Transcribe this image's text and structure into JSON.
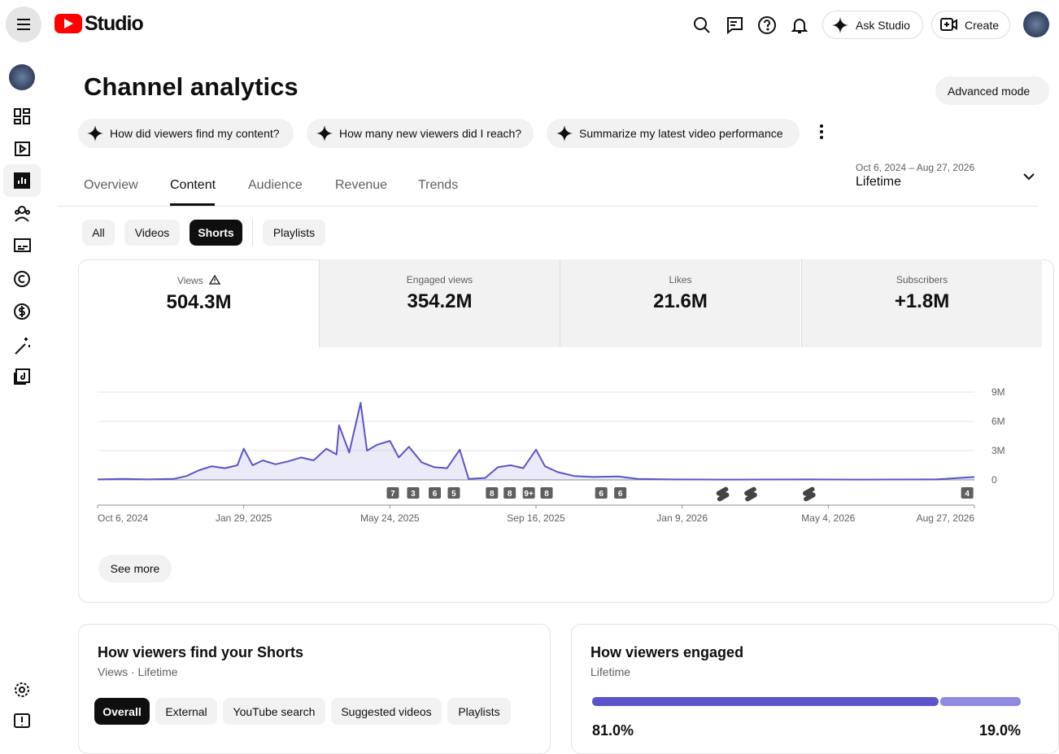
{
  "header": {
    "logo": "Studio",
    "ask": "Ask Studio",
    "create": "Create"
  },
  "title": "Channel analytics",
  "advanced": "Advanced mode",
  "suggestions": [
    "How did viewers find my content?",
    "How many new viewers did I reach?",
    "Summarize my latest video performance"
  ],
  "tabs": [
    "Overview",
    "Content",
    "Audience",
    "Revenue",
    "Trends"
  ],
  "date_range": {
    "range": "Oct 6, 2024 – Aug 27, 2026",
    "period": "Lifetime"
  },
  "filters": [
    "All",
    "Videos",
    "Shorts",
    "Playlists"
  ],
  "metrics": [
    {
      "label": "Views",
      "value": "504.3M"
    },
    {
      "label": "Engaged views",
      "value": "354.2M"
    },
    {
      "label": "Likes",
      "value": "21.6M"
    },
    {
      "label": "Subscribers",
      "value": "+1.8M"
    }
  ],
  "chart_data": {
    "type": "line",
    "color": "#5b54c9",
    "grid": true,
    "x": [
      "2024-10-06",
      "2024-10-26",
      "2024-11-15",
      "2024-12-05",
      "2024-12-15",
      "2024-12-25",
      "2025-01-04",
      "2025-01-14",
      "2025-01-24",
      "2025-01-29",
      "2025-02-05",
      "2025-02-13",
      "2025-02-23",
      "2025-03-05",
      "2025-03-15",
      "2025-03-25",
      "2025-04-04",
      "2025-04-12",
      "2025-04-14",
      "2025-04-22",
      "2025-05-01",
      "2025-05-06",
      "2025-05-14",
      "2025-05-24",
      "2025-05-31",
      "2025-06-08",
      "2025-06-18",
      "2025-06-28",
      "2025-07-08",
      "2025-07-18",
      "2025-07-25",
      "2025-08-07",
      "2025-08-17",
      "2025-08-27",
      "2025-09-06",
      "2025-09-16",
      "2025-09-23",
      "2025-10-03",
      "2025-10-16",
      "2025-10-31",
      "2025-11-20",
      "2025-12-05",
      "2025-12-30",
      "2026-02-18",
      "2026-04-19",
      "2026-05-29",
      "2026-07-28",
      "2026-08-27"
    ],
    "values": [
      50000,
      100000,
      50000,
      100000,
      400000,
      1000000,
      1400000,
      1200000,
      1500000,
      3200000,
      1500000,
      2000000,
      1600000,
      1900000,
      2300000,
      2000000,
      3200000,
      2600000,
      5600000,
      2800000,
      7900000,
      3000000,
      3600000,
      4000000,
      2300000,
      3400000,
      1800000,
      1300000,
      1200000,
      3100000,
      100000,
      200000,
      1300000,
      1500000,
      1200000,
      3100000,
      1400000,
      800000,
      400000,
      300000,
      350000,
      100000,
      50000,
      30000,
      50000,
      30000,
      50000,
      300000
    ],
    "xlim": [
      "2024-10-06",
      "2026-08-27"
    ],
    "xticks": [
      {
        "value": "2024-10-06",
        "label": "Oct 6, 2024"
      },
      {
        "value": "2025-01-29",
        "label": "Jan 29, 2025"
      },
      {
        "value": "2025-05-24",
        "label": "May 24, 2025"
      },
      {
        "value": "2025-09-16",
        "label": "Sep 16, 2025"
      },
      {
        "value": "2026-01-09",
        "label": "Jan 9, 2026"
      },
      {
        "value": "2026-05-04",
        "label": "May 4, 2026"
      },
      {
        "value": "2026-08-27",
        "label": "Aug 27, 2026"
      }
    ],
    "ylim": [
      0,
      9000000
    ],
    "yticks": [
      0,
      {
        "value": 3000000,
        "label": "3M"
      },
      {
        "value": 6000000,
        "label": "6M"
      },
      {
        "value": 9000000,
        "label": "9M"
      }
    ],
    "uploads": {
      "x": [
        "2025-05-26",
        "2025-06-11",
        "2025-06-28",
        "2025-07-13",
        "2025-08-12",
        "2025-08-26",
        "2025-09-10",
        "2025-09-24",
        "2025-11-06",
        "2025-11-21",
        "2026-02-09",
        "2026-03-03",
        "2026-04-18",
        "2026-08-21"
      ],
      "labels": [
        "7",
        "3",
        "6",
        "5",
        "8",
        "8",
        "9+",
        "8",
        "6",
        "6",
        null,
        null,
        null,
        "4"
      ]
    }
  },
  "see_more": "See more",
  "find_card": {
    "title": "How viewers find your Shorts",
    "subtitle": "Views · Lifetime",
    "chips": [
      "Overall",
      "External",
      "YouTube search",
      "Suggested videos",
      "Playlists"
    ]
  },
  "engaged_card": {
    "title": "How viewers engaged",
    "subtitle": "Lifetime",
    "values": [
      81.0,
      19.0
    ],
    "value_labels": [
      "81.0%",
      "19.0%"
    ],
    "colors": [
      "#5b54c9",
      "#8f8ae0"
    ]
  }
}
